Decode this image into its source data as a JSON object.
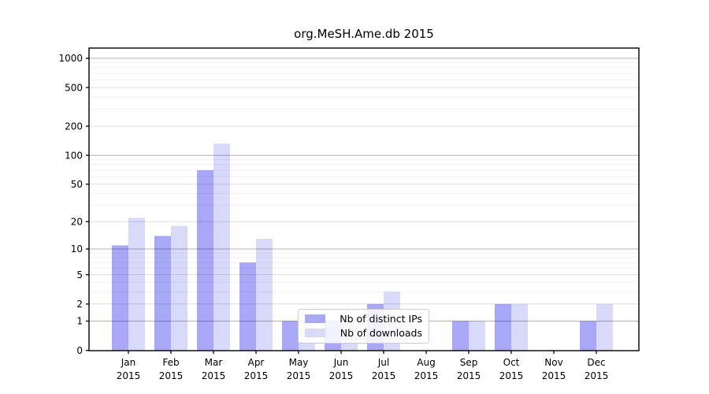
{
  "chart_data": {
    "type": "bar",
    "title": "org.MeSH.Ame.db 2015",
    "categories": [
      "Jan 2015",
      "Feb 2015",
      "Mar 2015",
      "Apr 2015",
      "May 2015",
      "Jun 2015",
      "Jul 2015",
      "Aug 2015",
      "Sep 2015",
      "Oct 2015",
      "Nov 2015",
      "Dec 2015"
    ],
    "series": [
      {
        "name": "Nb of distinct IPs",
        "color": "#a8a8f6",
        "values": [
          11,
          14,
          70,
          7,
          1,
          1,
          2,
          0,
          1,
          2,
          0,
          1
        ]
      },
      {
        "name": "Nb of downloads",
        "color": "#d9d9fa",
        "values": [
          22,
          18,
          132,
          13,
          1,
          1,
          3,
          0,
          1,
          2,
          0,
          2
        ]
      }
    ],
    "y_axis": {
      "scale": "log1p",
      "tick_labels": [
        "0",
        "1",
        "2",
        "5",
        "10",
        "20",
        "50",
        "100",
        "200",
        "500",
        "1000"
      ],
      "tick_values": [
        0,
        1,
        2,
        5,
        10,
        20,
        50,
        100,
        200,
        500,
        1000
      ],
      "minor_tick_values": [
        3,
        4,
        6,
        7,
        8,
        9,
        30,
        40,
        60,
        70,
        80,
        90,
        300,
        400,
        600,
        700,
        800,
        900
      ],
      "ylim": [
        0,
        1000
      ]
    },
    "xlabel": "",
    "ylabel": "",
    "grid": "horizontal, major and minor",
    "legend_position": "lower center inside plot",
    "bar_layout": "grouped pairs per month, distinct IPs left, downloads right"
  }
}
